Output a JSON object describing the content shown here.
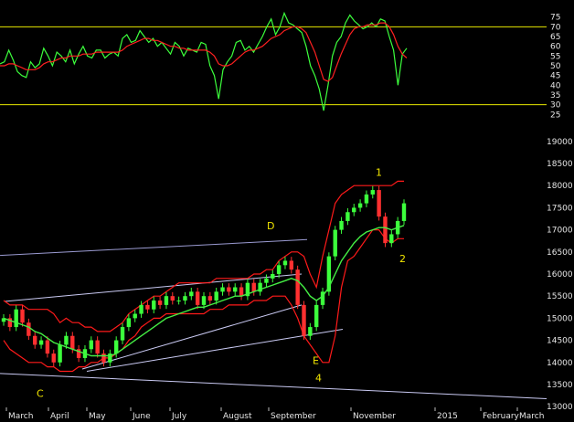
{
  "chart_data": [
    {
      "type": "line",
      "panel": "oscillator",
      "ylim": [
        20,
        80
      ],
      "yticks": [
        25,
        30,
        35,
        40,
        45,
        50,
        55,
        60,
        65,
        70,
        75
      ],
      "hlines": [
        {
          "value": 70,
          "color": "#e8e800"
        },
        {
          "value": 30,
          "color": "#e8e800"
        }
      ],
      "series": [
        {
          "color": "#3cff3c",
          "values": [
            51,
            52,
            58,
            53,
            47,
            45,
            44,
            52,
            49,
            51,
            59,
            55,
            50,
            57,
            55,
            52,
            58,
            51,
            56,
            60,
            55,
            54,
            58,
            58,
            54,
            56,
            57,
            55,
            64,
            66,
            62,
            63,
            68,
            65,
            62,
            64,
            60,
            62,
            59,
            56,
            62,
            60,
            55,
            59,
            58,
            57,
            62,
            61,
            50,
            45,
            33,
            48,
            52,
            55,
            62,
            63,
            58,
            60,
            57,
            61,
            65,
            70,
            74,
            66,
            70,
            77,
            72,
            71,
            69,
            67,
            60,
            50,
            45,
            38,
            27,
            40,
            55,
            62,
            65,
            72,
            76,
            73,
            71,
            69,
            70,
            72,
            70,
            74,
            73,
            65,
            58,
            40,
            56,
            59
          ]
        },
        {
          "color": "#ff2020",
          "values": [
            50,
            50,
            51,
            51,
            50,
            49,
            48,
            48,
            48,
            49,
            51,
            52,
            52,
            53,
            54,
            54,
            55,
            55,
            55,
            56,
            56,
            56,
            57,
            57,
            57,
            57,
            57,
            57,
            58,
            60,
            61,
            62,
            63,
            64,
            64,
            63,
            63,
            62,
            61,
            60,
            60,
            59,
            59,
            58,
            58,
            58,
            58,
            58,
            57,
            55,
            51,
            50,
            50,
            51,
            53,
            55,
            57,
            58,
            58,
            59,
            60,
            62,
            64,
            65,
            66,
            68,
            69,
            70,
            70,
            69,
            67,
            62,
            57,
            50,
            43,
            42,
            44,
            50,
            56,
            61,
            66,
            69,
            70,
            70,
            71,
            71,
            71,
            72,
            72,
            70,
            66,
            60,
            56,
            54
          ]
        }
      ]
    },
    {
      "type": "candlestick",
      "panel": "price",
      "ylim": [
        12900,
        19100
      ],
      "yticks": [
        13000,
        13500,
        14000,
        14500,
        15000,
        15500,
        16000,
        16500,
        17000,
        17500,
        18000,
        18500,
        19000
      ],
      "x_labels": [
        "March",
        "April",
        "May",
        "June",
        "July",
        "August",
        "September",
        "November",
        "2015",
        "February",
        "March"
      ],
      "close": [
        15000,
        14800,
        15200,
        14900,
        14600,
        14400,
        14500,
        14200,
        14000,
        14400,
        14600,
        14300,
        14100,
        14300,
        14500,
        14200,
        14000,
        14200,
        14500,
        14800,
        15000,
        15100,
        15300,
        15200,
        15400,
        15300,
        15500,
        15400,
        15400,
        15500,
        15600,
        15300,
        15500,
        15400,
        15600,
        15700,
        15600,
        15700,
        15500,
        15800,
        15600,
        15800,
        15900,
        16000,
        16200,
        16300,
        16100,
        15300,
        14600,
        14800,
        15300,
        15600,
        16400,
        17000,
        17200,
        17400,
        17500,
        17600,
        17800,
        17900,
        17300,
        16700,
        16900,
        17200,
        17600
      ],
      "band_upper": [
        15400,
        15300,
        15300,
        15300,
        15200,
        15200,
        15200,
        15200,
        15100,
        14900,
        15000,
        14900,
        14900,
        14800,
        14800,
        14700,
        14700,
        14700,
        14800,
        14900,
        15100,
        15200,
        15300,
        15400,
        15500,
        15500,
        15600,
        15700,
        15800,
        15800,
        15800,
        15800,
        15800,
        15800,
        15900,
        15900,
        15900,
        15900,
        15900,
        15900,
        16000,
        16000,
        16100,
        16100,
        16300,
        16400,
        16500,
        16500,
        16400,
        16000,
        15700,
        16400,
        17000,
        17600,
        17800,
        17900,
        18000,
        18000,
        18000,
        18000,
        18000,
        18000,
        18000,
        18100,
        18100
      ],
      "band_lower": [
        14500,
        14300,
        14200,
        14100,
        14000,
        14000,
        14000,
        13900,
        13900,
        13800,
        13800,
        13800,
        13900,
        13900,
        14000,
        14000,
        14100,
        14100,
        14200,
        14300,
        14500,
        14600,
        14800,
        14900,
        15000,
        15000,
        15100,
        15100,
        15100,
        15100,
        15100,
        15100,
        15100,
        15200,
        15200,
        15200,
        15300,
        15300,
        15300,
        15300,
        15400,
        15400,
        15400,
        15500,
        15500,
        15500,
        15300,
        15000,
        14600,
        14400,
        14200,
        14000,
        14000,
        14600,
        15700,
        16300,
        16400,
        16600,
        16800,
        17000,
        17000,
        16800,
        16700,
        16800,
        16800
      ],
      "moving_average": [
        15000,
        14950,
        14900,
        14850,
        14800,
        14700,
        14650,
        14550,
        14450,
        14400,
        14350,
        14300,
        14250,
        14200,
        14150,
        14150,
        14150,
        14150,
        14200,
        14300,
        14400,
        14500,
        14600,
        14700,
        14800,
        14900,
        15000,
        15050,
        15100,
        15150,
        15200,
        15250,
        15250,
        15300,
        15350,
        15400,
        15450,
        15500,
        15500,
        15550,
        15600,
        15650,
        15700,
        15750,
        15800,
        15850,
        15900,
        15850,
        15700,
        15500,
        15400,
        15500,
        15700,
        16000,
        16300,
        16500,
        16700,
        16850,
        16950,
        17000,
        17050,
        17050,
        17000,
        17050,
        17100
      ],
      "trendlines": [
        {
          "from": [
            "March",
            16420
          ],
          "to": [
            "September",
            16780
          ],
          "color": "#9b9bd2"
        },
        {
          "from": [
            "March",
            15380
          ],
          "to": [
            "September",
            16000
          ],
          "color": "#c9c9f2"
        },
        {
          "from": [
            "April",
            13850
          ],
          "to": [
            "September",
            15300
          ],
          "color": "#c9c9f2"
        },
        {
          "from": [
            "May",
            13800
          ],
          "to": [
            "November",
            14750
          ],
          "color": "#c9c9f2"
        },
        {
          "from": [
            "March",
            13750
          ],
          "to": [
            "March",
            13180
          ],
          "color": "#c9c9f2"
        }
      ],
      "annotations": [
        {
          "text": "1",
          "at": [
            "November",
            18300
          ]
        },
        {
          "text": "2",
          "at": [
            "November",
            16400
          ]
        },
        {
          "text": "D",
          "at": [
            "September",
            17100
          ]
        },
        {
          "text": "E",
          "at": [
            "November",
            14100
          ]
        },
        {
          "text": "4",
          "at": [
            "November",
            13700
          ]
        },
        {
          "text": "C",
          "at": [
            "April",
            13300
          ]
        }
      ]
    }
  ]
}
